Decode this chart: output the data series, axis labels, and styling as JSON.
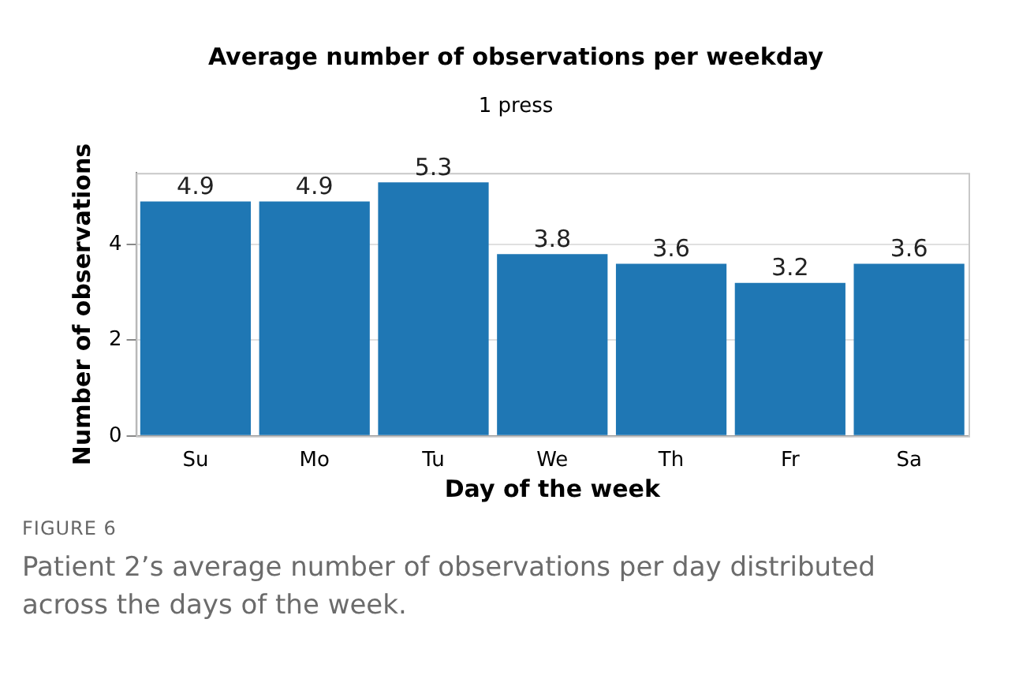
{
  "chart_data": {
    "type": "bar",
    "title": "Average number of observations per weekday",
    "subtitle": "1 press",
    "xlabel": "Day of the week",
    "ylabel": "Number of observations",
    "categories": [
      "Su",
      "Mo",
      "Tu",
      "We",
      "Th",
      "Fr",
      "Sa"
    ],
    "values": [
      4.9,
      4.9,
      5.3,
      3.8,
      3.6,
      3.2,
      3.6
    ],
    "color": "#1f77b4",
    "ylim": [
      0,
      5.5
    ],
    "yticks": [
      0,
      2,
      4
    ],
    "grid": "y",
    "legend": false,
    "data_labels": true,
    "annotations": [
      "FIGURE 6",
      "Patient 2’s average number of observations per day distributed across the days of the week."
    ]
  }
}
